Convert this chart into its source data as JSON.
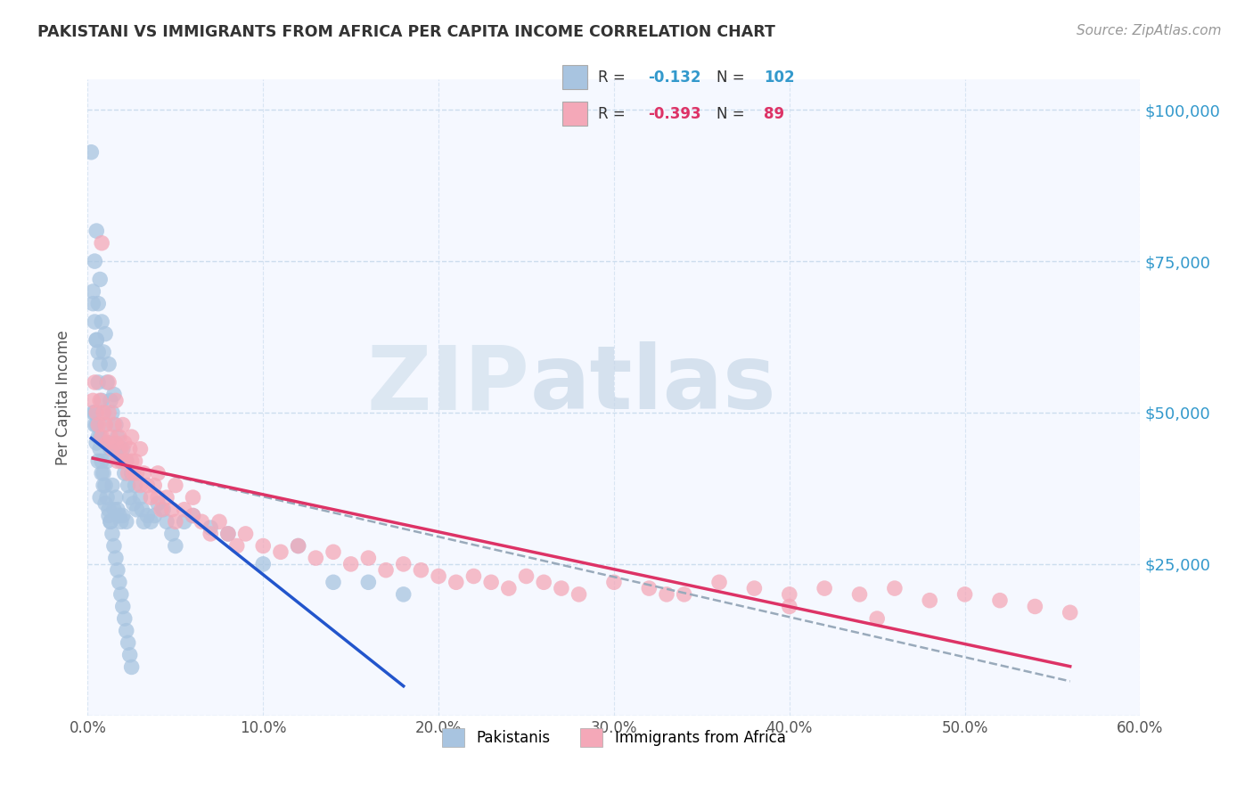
{
  "title": "PAKISTANI VS IMMIGRANTS FROM AFRICA PER CAPITA INCOME CORRELATION CHART",
  "source": "Source: ZipAtlas.com",
  "ylabel": "Per Capita Income",
  "xlim": [
    0.0,
    0.6
  ],
  "ylim": [
    0,
    105000
  ],
  "xtick_labels": [
    "0.0%",
    "10.0%",
    "20.0%",
    "30.0%",
    "40.0%",
    "50.0%",
    "60.0%"
  ],
  "xtick_vals": [
    0.0,
    0.1,
    0.2,
    0.3,
    0.4,
    0.5,
    0.6
  ],
  "ytick_vals": [
    0,
    25000,
    50000,
    75000,
    100000
  ],
  "ytick_labels": [
    "",
    "$25,000",
    "$50,000",
    "$75,000",
    "$100,000"
  ],
  "pakistani_color": "#a8c4e0",
  "african_color": "#f4a8b8",
  "trendline_pakistani_color": "#2255cc",
  "trendline_african_color": "#dd3366",
  "trendline_dashed_color": "#99aabb",
  "watermark_zip": "ZIP",
  "watermark_atlas": "atlas",
  "legend_R1": "-0.132",
  "legend_N1": "102",
  "legend_R2": "-0.393",
  "legend_N2": "89",
  "legend_color_R": "#3399cc",
  "legend_color_N": "#3399cc",
  "legend_color_R2": "#dd3366",
  "legend_color_N2": "#dd3366",
  "background_color": "#ffffff",
  "grid_color": "#ccddee",
  "plot_bg_color": "#f5f8ff",
  "pakistani_x": [
    0.002,
    0.003,
    0.003,
    0.004,
    0.004,
    0.005,
    0.005,
    0.005,
    0.006,
    0.006,
    0.006,
    0.007,
    0.007,
    0.007,
    0.007,
    0.008,
    0.008,
    0.008,
    0.009,
    0.009,
    0.009,
    0.01,
    0.01,
    0.01,
    0.011,
    0.011,
    0.012,
    0.012,
    0.012,
    0.013,
    0.013,
    0.013,
    0.014,
    0.014,
    0.015,
    0.015,
    0.015,
    0.016,
    0.016,
    0.017,
    0.017,
    0.018,
    0.018,
    0.019,
    0.019,
    0.02,
    0.02,
    0.021,
    0.022,
    0.022,
    0.023,
    0.024,
    0.025,
    0.026,
    0.027,
    0.028,
    0.03,
    0.031,
    0.032,
    0.034,
    0.036,
    0.038,
    0.04,
    0.043,
    0.045,
    0.048,
    0.05,
    0.055,
    0.06,
    0.07,
    0.08,
    0.1,
    0.12,
    0.14,
    0.16,
    0.18,
    0.004,
    0.005,
    0.006,
    0.007,
    0.008,
    0.009,
    0.01,
    0.011,
    0.012,
    0.013,
    0.014,
    0.015,
    0.016,
    0.017,
    0.018,
    0.019,
    0.02,
    0.021,
    0.022,
    0.023,
    0.024,
    0.025,
    0.003,
    0.004,
    0.005,
    0.006
  ],
  "pakistani_y": [
    93000,
    70000,
    50000,
    75000,
    48000,
    80000,
    62000,
    45000,
    68000,
    55000,
    42000,
    72000,
    58000,
    46000,
    36000,
    65000,
    52000,
    40000,
    60000,
    50000,
    38000,
    63000,
    48000,
    35000,
    55000,
    42000,
    58000,
    45000,
    33000,
    52000,
    44000,
    32000,
    50000,
    38000,
    53000,
    44000,
    34000,
    48000,
    36000,
    46000,
    34000,
    44000,
    33000,
    42000,
    32000,
    44000,
    33000,
    40000,
    42000,
    32000,
    38000,
    36000,
    40000,
    35000,
    38000,
    34000,
    36000,
    34000,
    32000,
    33000,
    32000,
    33000,
    35000,
    34000,
    32000,
    30000,
    28000,
    32000,
    33000,
    31000,
    30000,
    25000,
    28000,
    22000,
    22000,
    20000,
    50000,
    48000,
    46000,
    44000,
    42000,
    40000,
    38000,
    36000,
    34000,
    32000,
    30000,
    28000,
    26000,
    24000,
    22000,
    20000,
    18000,
    16000,
    14000,
    12000,
    10000,
    8000,
    68000,
    65000,
    62000,
    60000
  ],
  "african_x": [
    0.003,
    0.004,
    0.005,
    0.006,
    0.007,
    0.008,
    0.009,
    0.01,
    0.011,
    0.012,
    0.013,
    0.014,
    0.015,
    0.016,
    0.017,
    0.018,
    0.019,
    0.02,
    0.021,
    0.022,
    0.023,
    0.024,
    0.025,
    0.026,
    0.027,
    0.028,
    0.03,
    0.032,
    0.034,
    0.036,
    0.038,
    0.04,
    0.042,
    0.045,
    0.048,
    0.05,
    0.055,
    0.06,
    0.065,
    0.07,
    0.075,
    0.08,
    0.085,
    0.09,
    0.1,
    0.11,
    0.12,
    0.13,
    0.14,
    0.15,
    0.16,
    0.17,
    0.18,
    0.19,
    0.2,
    0.21,
    0.22,
    0.23,
    0.24,
    0.25,
    0.26,
    0.27,
    0.28,
    0.3,
    0.32,
    0.34,
    0.36,
    0.38,
    0.4,
    0.42,
    0.44,
    0.46,
    0.48,
    0.5,
    0.52,
    0.54,
    0.56,
    0.008,
    0.012,
    0.016,
    0.02,
    0.025,
    0.03,
    0.04,
    0.05,
    0.06,
    0.33,
    0.4,
    0.45
  ],
  "african_y": [
    52000,
    55000,
    50000,
    48000,
    52000,
    46000,
    50000,
    48000,
    45000,
    50000,
    46000,
    44000,
    48000,
    45000,
    42000,
    46000,
    44000,
    42000,
    45000,
    42000,
    40000,
    44000,
    42000,
    40000,
    42000,
    40000,
    38000,
    40000,
    38000,
    36000,
    38000,
    36000,
    34000,
    36000,
    34000,
    32000,
    34000,
    33000,
    32000,
    30000,
    32000,
    30000,
    28000,
    30000,
    28000,
    27000,
    28000,
    26000,
    27000,
    25000,
    26000,
    24000,
    25000,
    24000,
    23000,
    22000,
    23000,
    22000,
    21000,
    23000,
    22000,
    21000,
    20000,
    22000,
    21000,
    20000,
    22000,
    21000,
    20000,
    21000,
    20000,
    21000,
    19000,
    20000,
    19000,
    18000,
    17000,
    78000,
    55000,
    52000,
    48000,
    46000,
    44000,
    40000,
    38000,
    36000,
    20000,
    18000,
    16000
  ]
}
